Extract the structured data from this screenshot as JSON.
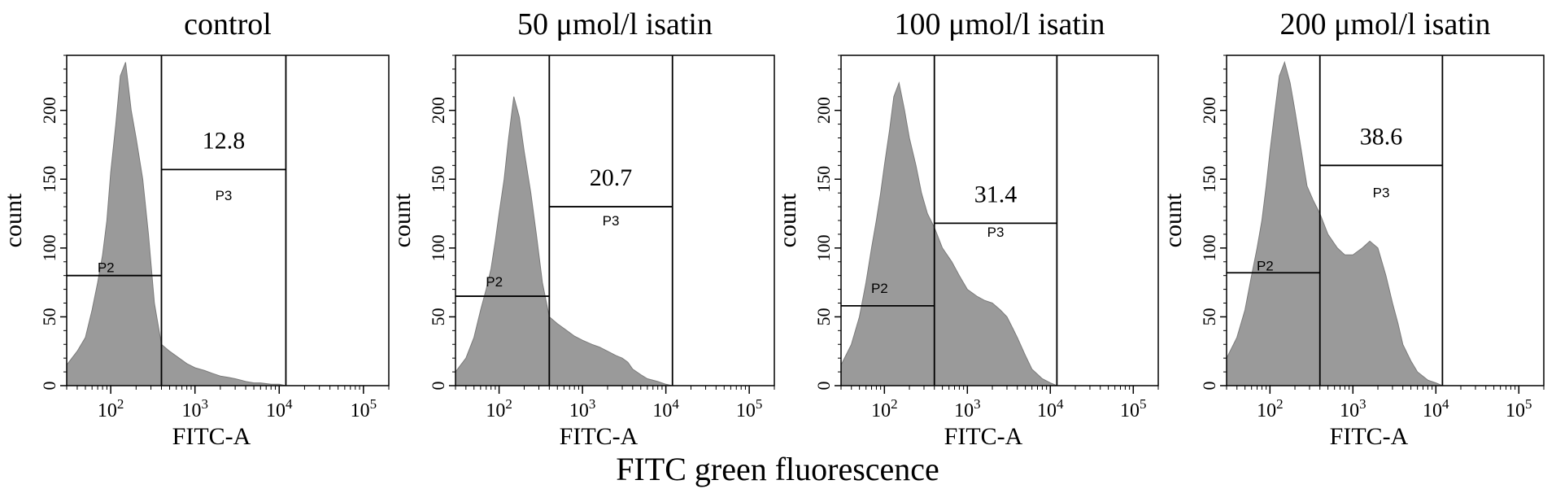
{
  "figure": {
    "common_xlabel": "FITC green fluorescence"
  },
  "chart_data": [
    {
      "type": "area",
      "title": "control",
      "xlabel": "FITC-A",
      "ylabel": "count",
      "x_scale": "log",
      "xlim": [
        30,
        200000
      ],
      "ylim": [
        0,
        240
      ],
      "x_ticks": [
        {
          "value": 100,
          "base": "10",
          "exp": "2"
        },
        {
          "value": 1000,
          "base": "10",
          "exp": "3"
        },
        {
          "value": 10000,
          "base": "10",
          "exp": "4"
        },
        {
          "value": 100000,
          "base": "10",
          "exp": "5"
        }
      ],
      "y_ticks": [
        "0",
        "50",
        "100",
        "150",
        "200"
      ],
      "y_tick_values": [
        0,
        50,
        100,
        150,
        200
      ],
      "histogram": {
        "x": [
          30,
          40,
          50,
          60,
          70,
          80,
          90,
          100,
          115,
          130,
          150,
          175,
          200,
          240,
          280,
          330,
          400,
          500,
          650,
          800,
          1000,
          1300,
          1600,
          2000,
          2500,
          3000,
          3500,
          4000,
          5000,
          6000,
          8000,
          10000,
          12000
        ],
        "y": [
          15,
          25,
          35,
          55,
          75,
          95,
          120,
          155,
          190,
          225,
          235,
          200,
          180,
          150,
          110,
          60,
          30,
          25,
          20,
          16,
          13,
          11,
          9,
          7,
          6,
          5,
          4,
          3,
          2,
          2,
          1,
          1,
          0
        ]
      },
      "gates": [
        {
          "label": "P2",
          "x": [
            30,
            400
          ],
          "y": 80
        },
        {
          "label": "P3",
          "x": [
            400,
            12000
          ],
          "y": 157,
          "percent": "12.8"
        }
      ]
    },
    {
      "type": "area",
      "title": "50 μmol/l isatin",
      "xlabel": "FITC-A",
      "ylabel": "count",
      "x_scale": "log",
      "xlim": [
        30,
        200000
      ],
      "ylim": [
        0,
        240
      ],
      "x_ticks": [
        {
          "value": 100,
          "base": "10",
          "exp": "2"
        },
        {
          "value": 1000,
          "base": "10",
          "exp": "3"
        },
        {
          "value": 10000,
          "base": "10",
          "exp": "4"
        },
        {
          "value": 100000,
          "base": "10",
          "exp": "5"
        }
      ],
      "y_ticks": [
        "0",
        "50",
        "100",
        "150",
        "200"
      ],
      "y_tick_values": [
        0,
        50,
        100,
        150,
        200
      ],
      "histogram": {
        "x": [
          30,
          40,
          50,
          60,
          70,
          80,
          90,
          100,
          115,
          130,
          150,
          175,
          200,
          240,
          280,
          330,
          400,
          500,
          650,
          800,
          1000,
          1300,
          1600,
          2000,
          2500,
          3000,
          3500,
          4000,
          5000,
          6000,
          8000,
          10000,
          12000
        ],
        "y": [
          10,
          20,
          35,
          55,
          70,
          85,
          105,
          125,
          150,
          180,
          210,
          195,
          170,
          140,
          110,
          75,
          50,
          45,
          40,
          36,
          33,
          30,
          28,
          25,
          22,
          20,
          17,
          12,
          8,
          5,
          3,
          1,
          0
        ]
      },
      "gates": [
        {
          "label": "P2",
          "x": [
            30,
            400
          ],
          "y": 65
        },
        {
          "label": "P3",
          "x": [
            400,
            12000
          ],
          "y": 130,
          "percent": "20.7"
        }
      ]
    },
    {
      "type": "area",
      "title": "100 μmol/l isatin",
      "xlabel": "FITC-A",
      "ylabel": "count",
      "x_scale": "log",
      "xlim": [
        30,
        200000
      ],
      "ylim": [
        0,
        240
      ],
      "x_ticks": [
        {
          "value": 100,
          "base": "10",
          "exp": "2"
        },
        {
          "value": 1000,
          "base": "10",
          "exp": "3"
        },
        {
          "value": 10000,
          "base": "10",
          "exp": "4"
        },
        {
          "value": 100000,
          "base": "10",
          "exp": "5"
        }
      ],
      "y_ticks": [
        "0",
        "50",
        "100",
        "150",
        "200"
      ],
      "y_tick_values": [
        0,
        50,
        100,
        150,
        200
      ],
      "histogram": {
        "x": [
          30,
          40,
          50,
          60,
          70,
          80,
          90,
          100,
          115,
          130,
          150,
          175,
          200,
          240,
          280,
          330,
          400,
          500,
          650,
          800,
          1000,
          1300,
          1600,
          2000,
          2500,
          3000,
          3500,
          4000,
          5000,
          6000,
          8000,
          10000,
          12000
        ],
        "y": [
          15,
          30,
          50,
          75,
          100,
          120,
          140,
          160,
          185,
          210,
          220,
          200,
          180,
          160,
          140,
          125,
          115,
          100,
          90,
          80,
          70,
          65,
          62,
          60,
          55,
          50,
          42,
          35,
          22,
          12,
          5,
          2,
          0
        ]
      },
      "gates": [
        {
          "label": "P2",
          "x": [
            30,
            400
          ],
          "y": 58
        },
        {
          "label": "P3",
          "x": [
            400,
            12000
          ],
          "y": 118,
          "percent": "31.4"
        }
      ]
    },
    {
      "type": "area",
      "title": "200 μmol/l isatin",
      "xlabel": "FITC-A",
      "ylabel": "count",
      "x_scale": "log",
      "xlim": [
        30,
        200000
      ],
      "ylim": [
        0,
        240
      ],
      "x_ticks": [
        {
          "value": 100,
          "base": "10",
          "exp": "2"
        },
        {
          "value": 1000,
          "base": "10",
          "exp": "3"
        },
        {
          "value": 10000,
          "base": "10",
          "exp": "4"
        },
        {
          "value": 100000,
          "base": "10",
          "exp": "5"
        }
      ],
      "y_ticks": [
        "0",
        "50",
        "100",
        "150",
        "200"
      ],
      "y_tick_values": [
        0,
        50,
        100,
        150,
        200
      ],
      "histogram": {
        "x": [
          30,
          40,
          50,
          60,
          70,
          80,
          90,
          100,
          115,
          130,
          150,
          175,
          200,
          240,
          280,
          330,
          400,
          500,
          650,
          800,
          1000,
          1300,
          1600,
          2000,
          2500,
          3000,
          3500,
          4000,
          5000,
          6000,
          8000,
          10000,
          12000
        ],
        "y": [
          20,
          35,
          55,
          80,
          100,
          120,
          145,
          170,
          200,
          225,
          235,
          220,
          200,
          170,
          145,
          135,
          125,
          110,
          100,
          95,
          95,
          100,
          105,
          100,
          80,
          60,
          45,
          30,
          18,
          10,
          4,
          2,
          0
        ]
      },
      "gates": [
        {
          "label": "P2",
          "x": [
            30,
            400
          ],
          "y": 82
        },
        {
          "label": "P3",
          "x": [
            400,
            12000
          ],
          "y": 160,
          "percent": "38.6"
        }
      ]
    }
  ]
}
